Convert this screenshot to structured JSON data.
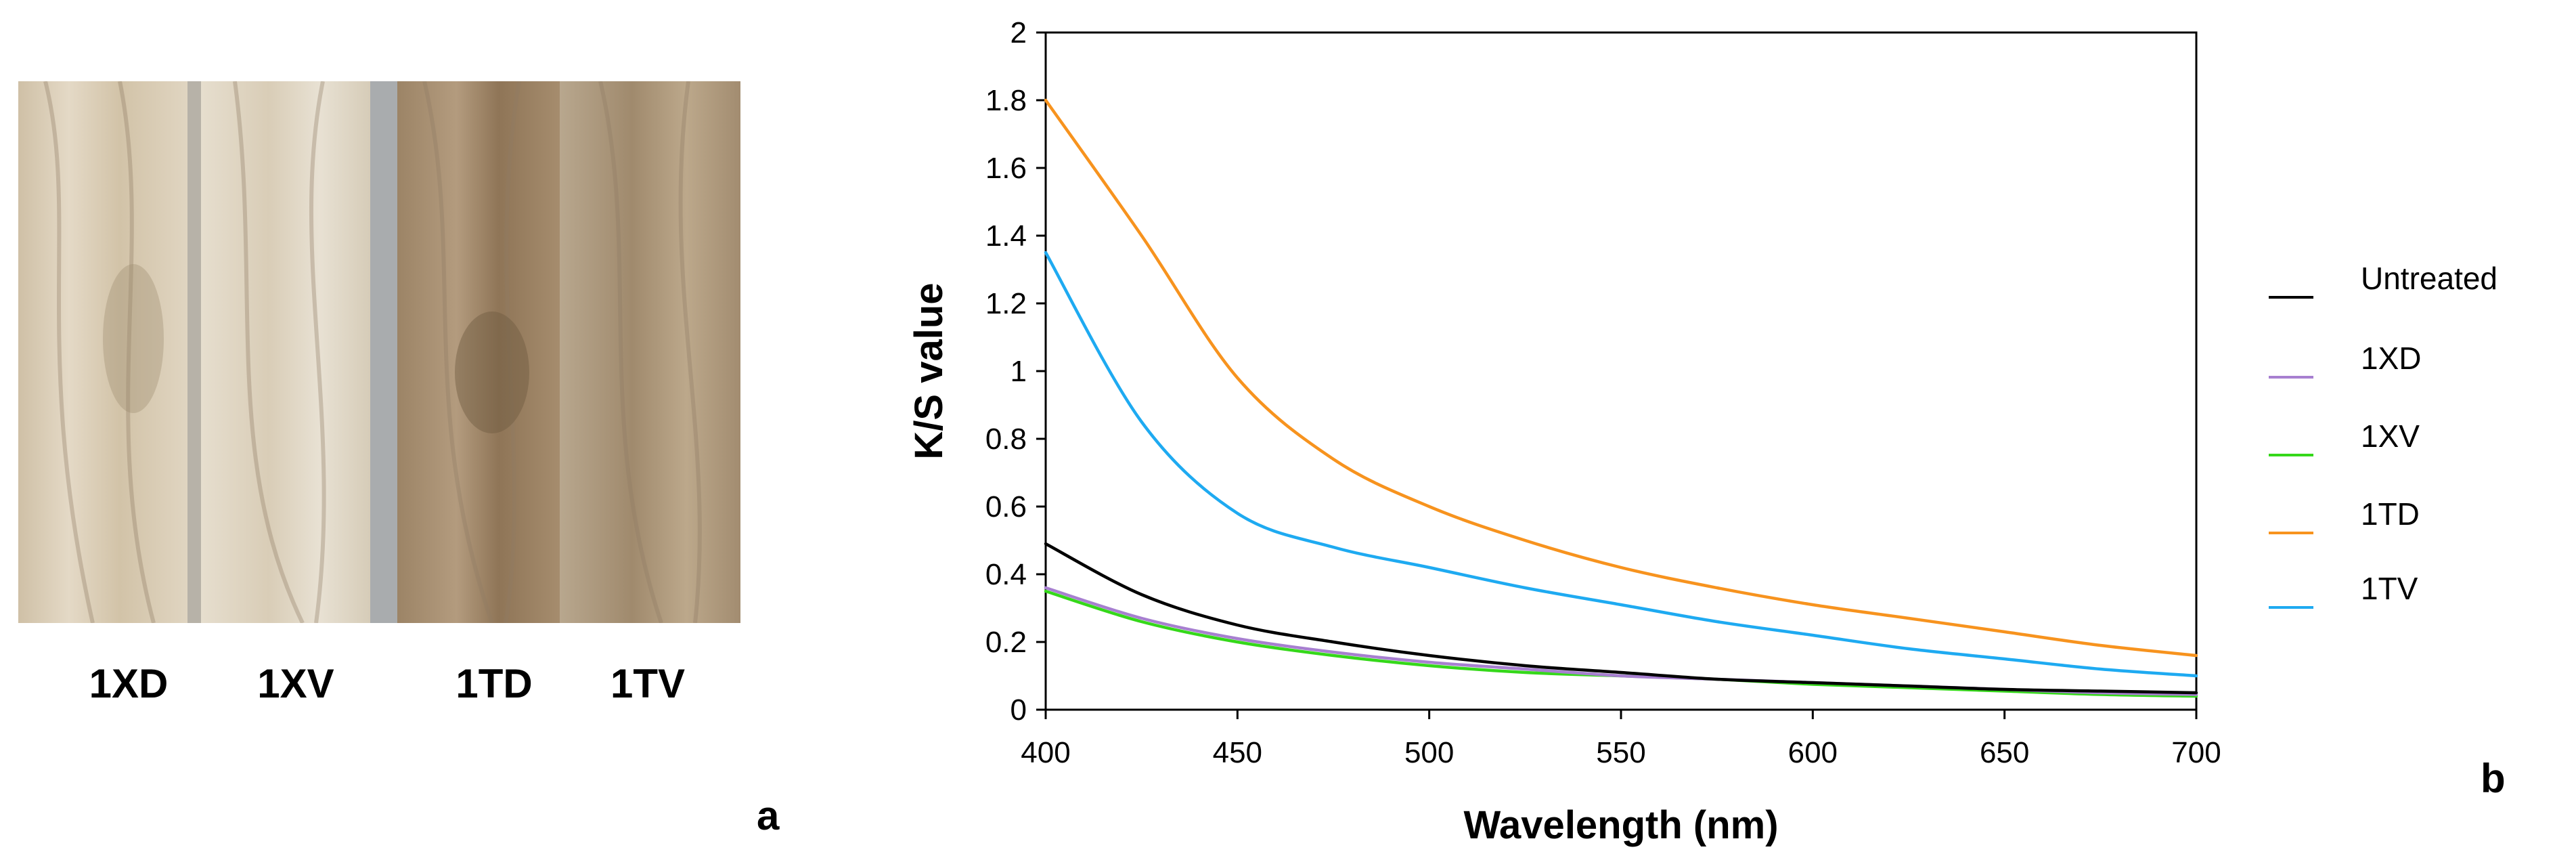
{
  "panel_a": {
    "letter": "a",
    "samples": [
      "1XD",
      "1XV",
      "1TD",
      "1TV"
    ],
    "swatch_colors": [
      "#d9ccb6",
      "#ddd4c2",
      "#a99073",
      "#b49f84"
    ]
  },
  "panel_b": {
    "letter": "b"
  },
  "chart_data": {
    "type": "line",
    "title": "",
    "xlabel": "Wavelength (nm)",
    "ylabel": "K/S value",
    "xlim": [
      400,
      700
    ],
    "ylim": [
      0,
      2
    ],
    "xticks": [
      400,
      450,
      500,
      550,
      600,
      650,
      700
    ],
    "yticks": [
      0,
      0.2,
      0.4,
      0.6,
      0.8,
      1,
      1.2,
      1.4,
      1.6,
      1.8,
      2
    ],
    "x": [
      400,
      425,
      450,
      475,
      500,
      525,
      550,
      575,
      600,
      625,
      650,
      675,
      700
    ],
    "legend_position": "right",
    "series": [
      {
        "name": "Untreated",
        "color": "#000000",
        "values": [
          0.49,
          0.34,
          0.25,
          0.2,
          0.16,
          0.13,
          0.11,
          0.09,
          0.08,
          0.07,
          0.06,
          0.055,
          0.05
        ]
      },
      {
        "name": "1XD",
        "color": "#a77fd0",
        "values": [
          0.36,
          0.27,
          0.21,
          0.17,
          0.14,
          0.12,
          0.1,
          0.09,
          0.08,
          0.07,
          0.06,
          0.05,
          0.045
        ]
      },
      {
        "name": "1XV",
        "color": "#35d81a",
        "values": [
          0.35,
          0.26,
          0.2,
          0.16,
          0.13,
          0.11,
          0.1,
          0.09,
          0.075,
          0.065,
          0.055,
          0.045,
          0.04
        ]
      },
      {
        "name": "1TD",
        "color": "#f7931e",
        "values": [
          1.8,
          1.4,
          0.98,
          0.74,
          0.6,
          0.5,
          0.42,
          0.36,
          0.31,
          0.27,
          0.23,
          0.19,
          0.16
        ]
      },
      {
        "name": "1TV",
        "color": "#1eaaf1",
        "values": [
          1.35,
          0.85,
          0.58,
          0.48,
          0.42,
          0.36,
          0.31,
          0.26,
          0.22,
          0.18,
          0.15,
          0.12,
          0.1
        ]
      }
    ]
  }
}
